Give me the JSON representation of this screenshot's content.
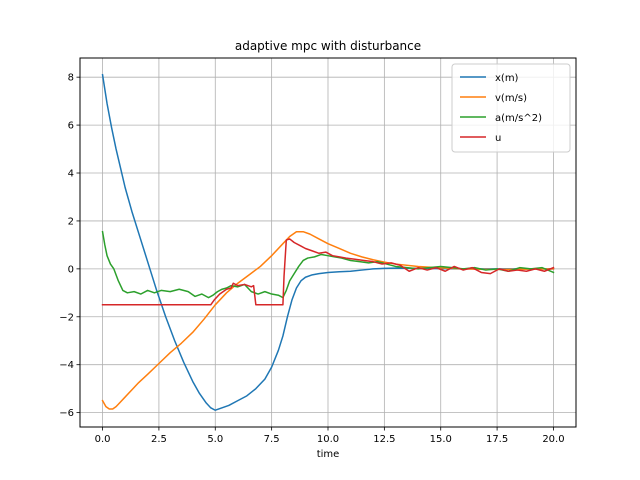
{
  "chart_data": {
    "type": "line",
    "title": "adaptive mpc with disturbance",
    "xlabel": "time",
    "ylabel": "",
    "xlim": [
      -1.0,
      21.0
    ],
    "ylim": [
      -6.6,
      8.8
    ],
    "xticks": [
      0.0,
      2.5,
      5.0,
      7.5,
      10.0,
      12.5,
      15.0,
      17.5,
      20.0
    ],
    "xtick_labels": [
      "0.0",
      "2.5",
      "5.0",
      "7.5",
      "10.0",
      "12.5",
      "15.0",
      "17.5",
      "20.0"
    ],
    "yticks": [
      -6,
      -4,
      -2,
      0,
      2,
      4,
      6,
      8
    ],
    "ytick_labels": [
      "−6",
      "−4",
      "−2",
      "0",
      "2",
      "4",
      "6",
      "8"
    ],
    "grid": true,
    "legend_position": "top-right",
    "series": [
      {
        "name": "x(m)",
        "color": "#1f77b4",
        "x": [
          0,
          0.2,
          0.4,
          0.6,
          0.8,
          1.0,
          1.3,
          1.6,
          2.0,
          2.4,
          2.8,
          3.2,
          3.6,
          4.0,
          4.3,
          4.6,
          4.8,
          5.0,
          5.3,
          5.6,
          6.0,
          6.4,
          6.8,
          7.2,
          7.5,
          7.8,
          8.0,
          8.2,
          8.4,
          8.6,
          8.8,
          9.0,
          9.3,
          9.6,
          10.0,
          10.5,
          11.0,
          11.5,
          12.0,
          12.5,
          13.0,
          14.0,
          15.0,
          16.0,
          17.0,
          18.0,
          19.0,
          20.0
        ],
        "y": [
          8.1,
          6.9,
          5.9,
          5.0,
          4.2,
          3.4,
          2.4,
          1.5,
          0.3,
          -0.9,
          -2.0,
          -3.0,
          -3.9,
          -4.7,
          -5.2,
          -5.6,
          -5.8,
          -5.9,
          -5.8,
          -5.7,
          -5.5,
          -5.3,
          -5.0,
          -4.6,
          -4.1,
          -3.4,
          -2.8,
          -2.0,
          -1.3,
          -0.8,
          -0.5,
          -0.35,
          -0.25,
          -0.2,
          -0.15,
          -0.12,
          -0.1,
          -0.05,
          0.0,
          0.02,
          0.03,
          0.02,
          0.01,
          0.0,
          0.0,
          0.0,
          0.0,
          0.0
        ]
      },
      {
        "name": "v(m/s)",
        "color": "#ff7f0e",
        "x": [
          0,
          0.15,
          0.3,
          0.45,
          0.6,
          0.8,
          1.0,
          1.3,
          1.6,
          2.0,
          2.5,
          3.0,
          3.5,
          4.0,
          4.5,
          5.0,
          5.5,
          6.0,
          6.5,
          7.0,
          7.5,
          8.0,
          8.3,
          8.6,
          8.9,
          9.2,
          9.6,
          10.0,
          10.5,
          11.0,
          11.5,
          12.0,
          12.5,
          13.0,
          14.0,
          15.0,
          16.0,
          17.0,
          18.0,
          19.0,
          20.0
        ],
        "y": [
          -5.5,
          -5.75,
          -5.85,
          -5.85,
          -5.75,
          -5.55,
          -5.35,
          -5.05,
          -4.75,
          -4.4,
          -3.95,
          -3.5,
          -3.1,
          -2.65,
          -2.1,
          -1.5,
          -1.0,
          -0.6,
          -0.25,
          0.1,
          0.55,
          1.05,
          1.35,
          1.55,
          1.55,
          1.45,
          1.25,
          1.05,
          0.85,
          0.65,
          0.5,
          0.38,
          0.28,
          0.2,
          0.1,
          0.04,
          0.0,
          -0.02,
          -0.02,
          -0.01,
          0.0
        ]
      },
      {
        "name": "a(m/s^2)",
        "color": "#2ca02c",
        "x": [
          0,
          0.1,
          0.2,
          0.35,
          0.5,
          0.7,
          0.9,
          1.1,
          1.4,
          1.7,
          2.0,
          2.3,
          2.6,
          3.0,
          3.4,
          3.8,
          4.1,
          4.4,
          4.7,
          4.9,
          5.1,
          5.3,
          5.5,
          5.7,
          6.0,
          6.3,
          6.6,
          6.9,
          7.2,
          7.5,
          7.8,
          8.0,
          8.15,
          8.3,
          8.5,
          8.7,
          8.9,
          9.1,
          9.4,
          9.7,
          10.0,
          10.3,
          10.6,
          11.0,
          11.4,
          11.8,
          12.2,
          12.6,
          13.0,
          13.5,
          14.0,
          14.5,
          15.0,
          15.5,
          16.0,
          16.5,
          17.0,
          17.5,
          18.0,
          18.5,
          19.0,
          19.5,
          20.0
        ],
        "y": [
          1.55,
          1.0,
          0.55,
          0.2,
          0.0,
          -0.5,
          -0.9,
          -1.0,
          -0.95,
          -1.05,
          -0.9,
          -1.0,
          -0.9,
          -0.95,
          -0.85,
          -0.95,
          -1.15,
          -1.05,
          -1.2,
          -1.1,
          -0.95,
          -0.85,
          -0.8,
          -0.7,
          -0.75,
          -0.65,
          -0.95,
          -1.05,
          -0.95,
          -1.05,
          -1.1,
          -1.2,
          -0.9,
          -0.5,
          -0.2,
          0.1,
          0.35,
          0.45,
          0.5,
          0.6,
          0.55,
          0.5,
          0.45,
          0.35,
          0.3,
          0.25,
          0.3,
          0.2,
          0.1,
          0.05,
          0.0,
          0.05,
          0.1,
          0.05,
          0.0,
          0.05,
          -0.05,
          0.0,
          -0.1,
          0.05,
          0.0,
          0.05,
          -0.15
        ]
      },
      {
        "name": "u",
        "color": "#d62728",
        "x": [
          0,
          4.8,
          4.95,
          5.2,
          5.5,
          5.7,
          5.8,
          6.0,
          6.3,
          6.6,
          6.7,
          6.8,
          7.0,
          7.5,
          8.0,
          8.05,
          8.15,
          8.3,
          8.5,
          8.8,
          9.0,
          9.3,
          9.6,
          9.9,
          10.2,
          10.5,
          10.8,
          11.2,
          11.6,
          12.0,
          12.4,
          12.8,
          13.2,
          13.6,
          14.0,
          14.4,
          14.8,
          15.2,
          15.6,
          16.0,
          16.4,
          16.8,
          17.2,
          17.6,
          18.0,
          18.4,
          18.8,
          19.2,
          19.6,
          20.0
        ],
        "y": [
          -1.5,
          -1.5,
          -1.3,
          -1.05,
          -0.85,
          -0.8,
          -0.6,
          -0.7,
          -0.65,
          -0.75,
          -0.7,
          -1.5,
          -1.5,
          -1.5,
          -1.5,
          -0.3,
          1.2,
          1.25,
          1.1,
          0.95,
          0.85,
          0.75,
          0.65,
          0.7,
          0.55,
          0.5,
          0.45,
          0.4,
          0.35,
          0.3,
          0.2,
          0.25,
          0.15,
          -0.1,
          0.05,
          -0.05,
          0.05,
          -0.1,
          0.1,
          -0.05,
          0.05,
          -0.15,
          -0.2,
          0.0,
          -0.1,
          -0.05,
          -0.1,
          0.0,
          -0.1,
          0.05
        ]
      }
    ]
  }
}
